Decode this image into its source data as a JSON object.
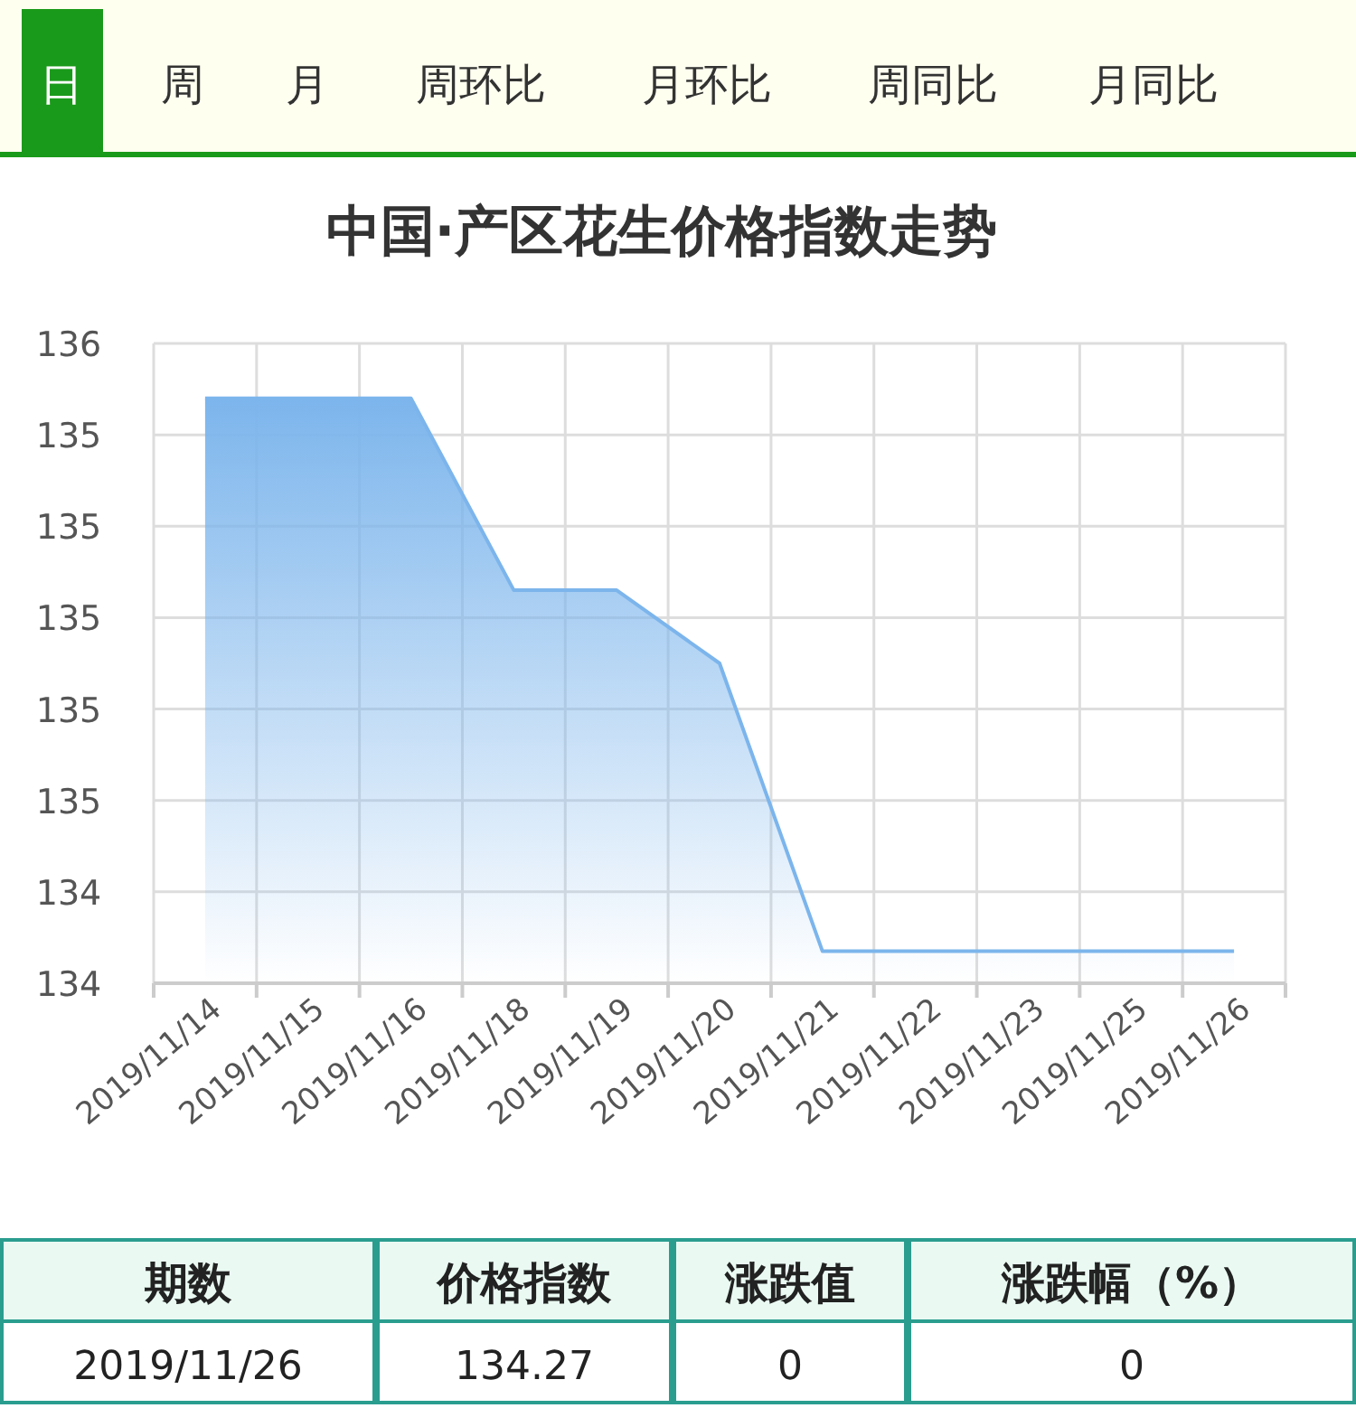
{
  "chart_data": {
    "type": "area",
    "title": "中国·产区花生价格指数走势",
    "categories": [
      "2019/11/14",
      "2019/11/15",
      "2019/11/16",
      "2019/11/18",
      "2019/11/19",
      "2019/11/20",
      "2019/11/21",
      "2019/11/22",
      "2019/11/23",
      "2019/11/25",
      "2019/11/26"
    ],
    "series": [
      {
        "color": "#7cb5ec",
        "values": [
          135.48,
          135.48,
          135.48,
          135.06,
          135.06,
          134.9,
          134.27,
          134.27,
          134.27,
          134.27,
          134.27
        ]
      }
    ],
    "ylim": [
      134.2,
      135.6
    ],
    "yticks": [
      {
        "value": 134.2,
        "label": "134"
      },
      {
        "value": 134.4,
        "label": "134"
      },
      {
        "value": 134.6,
        "label": "135"
      },
      {
        "value": 134.8,
        "label": "135"
      },
      {
        "value": 135.0,
        "label": "135"
      },
      {
        "value": 135.2,
        "label": "135"
      },
      {
        "value": 135.4,
        "label": "135"
      },
      {
        "value": 135.6,
        "label": "136"
      }
    ],
    "grid": true,
    "annotations": [
      "日",
      "周",
      "月",
      "周环比",
      "月环比",
      "周同比",
      "月同比",
      "期数",
      "价格指数",
      "涨跌值",
      "涨跌幅（%）",
      "2019/11/26",
      "134.27",
      "0",
      "0"
    ]
  }
}
